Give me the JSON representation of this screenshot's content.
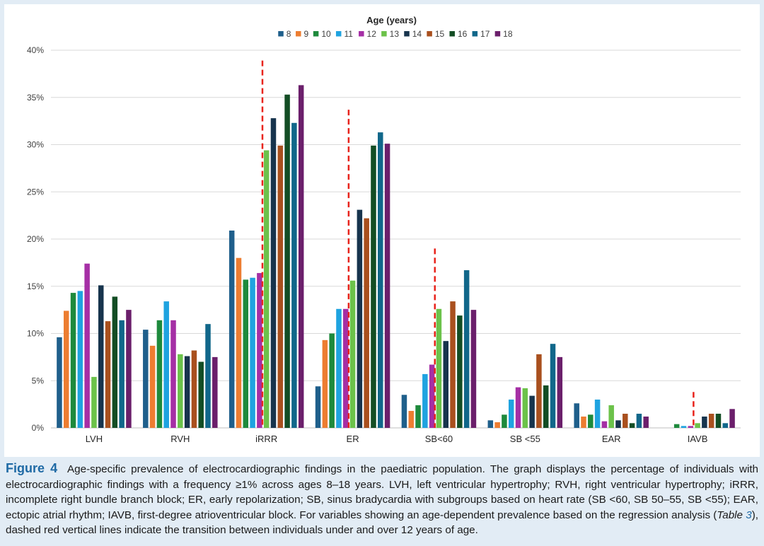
{
  "chart_data": {
    "type": "bar",
    "legend_title": "Age (years)",
    "legend_position": "top",
    "categories": [
      "LVH",
      "RVH",
      "iRRR",
      "ER",
      "SB<60",
      "SB <55",
      "EAR",
      "IAVB"
    ],
    "yticks": [
      "0%",
      "5%",
      "10%",
      "15%",
      "20%",
      "25%",
      "30%",
      "35%",
      "40%"
    ],
    "ylim": [
      0,
      40
    ],
    "grid": true,
    "series": [
      {
        "name": "8",
        "color": "#1f5f8b",
        "values": [
          9.6,
          10.4,
          20.9,
          4.4,
          3.5,
          0.8,
          2.6,
          0
        ]
      },
      {
        "name": "9",
        "color": "#ed7d31",
        "values": [
          12.4,
          8.7,
          18.0,
          9.3,
          1.8,
          0.6,
          1.2,
          0
        ]
      },
      {
        "name": "10",
        "color": "#1e8a3c",
        "values": [
          14.3,
          11.4,
          15.7,
          10.0,
          2.4,
          1.4,
          1.4,
          0.4
        ]
      },
      {
        "name": "11",
        "color": "#1fa3e0",
        "values": [
          14.5,
          13.4,
          15.9,
          12.6,
          5.7,
          3.0,
          3.0,
          0.2
        ]
      },
      {
        "name": "12",
        "color": "#a52fa5",
        "values": [
          17.4,
          11.4,
          16.4,
          12.6,
          6.7,
          4.3,
          0.7,
          0.2
        ]
      },
      {
        "name": "13",
        "color": "#6cc24a",
        "values": [
          5.4,
          7.8,
          29.4,
          15.6,
          12.6,
          4.2,
          2.4,
          0.5
        ]
      },
      {
        "name": "14",
        "color": "#17344d",
        "values": [
          15.1,
          7.6,
          32.8,
          23.1,
          9.2,
          3.4,
          0.8,
          1.2
        ]
      },
      {
        "name": "15",
        "color": "#a9501e",
        "values": [
          11.3,
          8.2,
          29.9,
          22.2,
          13.4,
          7.8,
          1.5,
          1.5
        ]
      },
      {
        "name": "16",
        "color": "#134d24",
        "values": [
          13.9,
          7.0,
          35.3,
          29.9,
          11.9,
          4.5,
          0.5,
          1.5
        ]
      },
      {
        "name": "17",
        "color": "#11678a",
        "values": [
          11.4,
          11.0,
          32.3,
          31.3,
          16.7,
          8.9,
          1.5,
          0.5
        ]
      },
      {
        "name": "18",
        "color": "#6b1f6b",
        "values": [
          12.5,
          7.5,
          36.3,
          30.1,
          12.5,
          7.5,
          1.2,
          2.0
        ]
      }
    ],
    "threshold_lines": [
      {
        "category": "iRRR",
        "color": "#e8231b",
        "value": 38.9
      },
      {
        "category": "ER",
        "color": "#e8231b",
        "value": 33.7
      },
      {
        "category": "SB<60",
        "color": "#e8231b",
        "value": 19.0
      },
      {
        "category": "IAVB",
        "color": "#e8231b",
        "value": 3.8
      }
    ]
  },
  "caption": {
    "figure_label": "Figure 4",
    "text_main": "Age-specific prevalence of electrocardiographic findings in the paediatric population. The graph displays the percentage of individuals with electrocardiographic findings with a frequency ≥1% across ages 8–18 years. LVH, left ventricular hypertrophy; RVH, right ventricular hypertrophy; iRRR, incomplete right bundle branch block; ER, early repolarization; SB, sinus bradycardia with subgroups based on heart rate (SB <60, SB 50–55, SB <55); EAR, ectopic atrial rhythm; IAVB, first-degree atrioventricular block. For variables showing an age-dependent prevalence based on the regression analysis (",
    "table_word": "Table ",
    "table_num": "3",
    "text_end": "), dashed red vertical lines indicate the transition between individuals under and over 12 years of age."
  }
}
